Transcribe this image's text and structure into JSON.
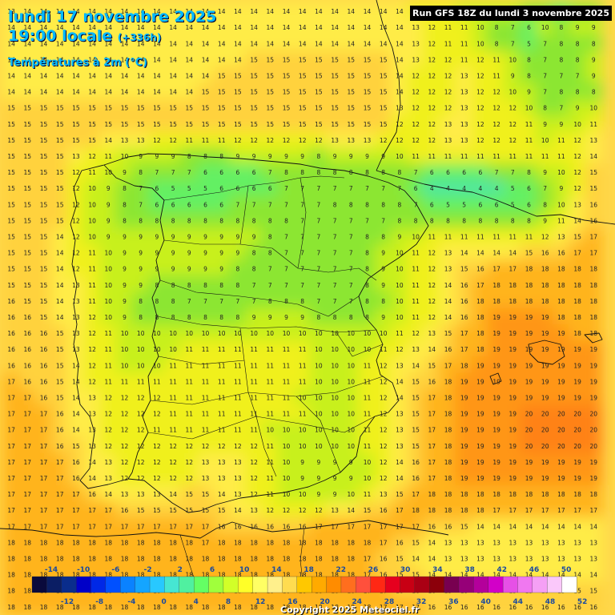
{
  "header": {
    "date": "lundi 17 novembre 2025",
    "time": "19:00 locale",
    "lead": "(+336h)",
    "parameter": "Températures à 2m (°C)",
    "run": "Run GFS 18Z du lundi 3 novembre 2025"
  },
  "legend": {
    "top_labels": [
      "-14",
      "-10",
      "-6",
      "-2",
      "2",
      "6",
      "10",
      "14",
      "18",
      "22",
      "26",
      "30",
      "34",
      "38",
      "42",
      "46",
      "50"
    ],
    "bottom_labels": [
      "-12",
      "-8",
      "-4",
      "0",
      "4",
      "8",
      "12",
      "16",
      "20",
      "24",
      "28",
      "32",
      "36",
      "40",
      "44",
      "48",
      "52"
    ],
    "colors": [
      "#0a0a3c",
      "#0b1e64",
      "#0a2d8c",
      "#0000c8",
      "#0028e6",
      "#0050ff",
      "#0a82ff",
      "#14a5ff",
      "#28c8ff",
      "#46e6d2",
      "#50f0a0",
      "#64ff64",
      "#a0ff3c",
      "#d2ff28",
      "#ffff28",
      "#ffff64",
      "#fff08c",
      "#ffdc50",
      "#ffc800",
      "#ffaa00",
      "#ff8c00",
      "#ff6e1e",
      "#ff503c",
      "#ff2814",
      "#e6001e",
      "#c80014",
      "#aa0014",
      "#8c000a",
      "#780050",
      "#960078",
      "#b4009b",
      "#d200c8",
      "#e650e6",
      "#f078f0",
      "#f5a0f5",
      "#fac8fa",
      "#ffffff"
    ]
  },
  "copyright": "Copyright 2025 Meteociel.fr",
  "grid": {
    "rows": [
      "13 14 14 14 14 14 14 14 14 14 14 14 14 14 14 14 14 14 14 14 14 14 14 14 14 12 11 11 10 10 10 9 8 7 6 7 8",
      "14 14 14 14 14 14 14 14 14 14 14 14 14 14 14 14 14 14 14 14 14 14 14 14 14 13 12 11 11 10 8 7 6 10 8 9 9",
      "14 14 14 14 14 14 14 14 14 14 14 14 14 14 14 14 14 14 14 14 14 14 14 14 14 13 12 11 11 10 8 7 5 7 8 8 8",
      "14 14 14 14 14 14 14 14 14 14 14 14 14 14 14 15 15 15 15 15 15 15 15 15 14 13 12 12 11 12 11 10 8 7 8 8 9",
      "14 14 14 14 14 14 14 14 14 14 14 14 14 15 15 15 15 15 15 15 15 15 15 15 14 12 12 12 13 12 11 9 8 7 7 7 9",
      "14 14 14 14 14 14 14 14 14 14 14 14 15 15 15 15 15 15 15 15 15 15 15 15 14 12 12 12 13 12 12 10 9 7 8 8 8",
      "15 15 15 15 15 15 15 15 15 15 15 15 15 15 15 15 15 15 15 15 15 15 15 15 13 12 12 12 13 12 12 12 10 8 7 9 10",
      "15 15 15 15 15 15 15 15 15 15 15 15 15 15 15 15 15 15 15 15 15 15 15 15 12 12 12 13 13 12 12 12 11 9 9 10 11",
      "15 15 15 15 15 15 14 13 13 12 12 11 11 11 12 12 12 12 12 12 13 13 13 12 12 12 12 13 13 12 12 12 11 10 11 12 13",
      "15 15 15 15 13 12 11 10 9 9 9 8 8 8 9 9 9 9 9 8 9 9 9 9 10 11 11 11 11 11 11 11 11 11 11 12 14",
      "15 15 15 15 12 11 10 9 8 7 7 7 6 6 6 6 7 8 8 8 8 8 8 8 8 7 6 6 6 6 7 7 8 9 10 12 15",
      "15 15 15 15 12 10 9 8 7 6 5 5 5 6 6 6 6 7 7 7 7 7 7 7 7 6 4 4 4 4 4 5 6 7 9 12 15",
      "15 15 15 15 12 10 9 8 7 6 6 6 6 6 7 7 7 7 7 7 8 8 8 8 8 7 6 5 5 6 6 5 6 8 10 13 16",
      "15 15 15 15 12 10 9 8 8 8 8 8 8 8 8 8 8 8 7 7 7 7 7 7 8 8 8 8 8 8 8 8 8 9 11 14 16",
      "15 15 15 14 12 10 9 9 9 9 9 9 9 9 9 9 8 7 7 7 7 7 8 8 9 10 11 11 11 11 11 11 11 12 13 15 17",
      "15 15 15 14 12 11 10 9 9 9 9 9 9 9 9 8 8 7 7 7 7 7 8 9 10 11 12 13 14 14 14 14 15 16 16 17 17",
      "15 15 15 14 12 11 10 9 9 9 9 9 9 9 8 8 7 7 7 7 7 7 8 9 10 11 12 13 15 16 17 17 18 18 18 18 18",
      "15 15 15 14 13 11 10 9 9 8 8 8 8 8 8 7 7 7 7 7 7 7 8 9 10 11 12 14 16 17 18 18 18 18 18 18 18",
      "16 15 15 14 13 11 10 9 8 8 8 7 7 7 7 7 8 8 8 7 7 7 8 8 10 11 12 14 16 18 18 18 18 18 18 18 18",
      "16 16 15 14 13 12 10 9 8 8 8 8 8 8 8 9 9 9 9 8 8 8 8 9 10 11 12 14 16 18 19 19 19 19 18 18 18",
      "16 16 16 15 13 12 11 10 10 10 10 10 10 10 10 10 10 10 10 10 10 10 10 10 11 12 13 15 17 18 19 19 19 19 19 18 18",
      "16 16 16 15 13 12 11 10 10 10 10 11 11 11 11 11 11 11 11 10 10 10 10 11 12 13 14 16 17 18 19 19 19 19 19 19 19",
      "16 16 16 15 14 12 11 10 10 10 11 11 11 11 11 11 11 11 11 10 10 10 11 12 13 14 15 17 18 19 19 19 19 19 19 19 19",
      "17 16 16 15 14 12 11 11 11 11 11 11 11 11 11 11 11 11 11 10 10 10 11 12 14 15 16 18 19 19 19 19 19 19 19 19 19",
      "17 17 16 15 14 13 12 12 12 12 11 11 11 11 11 11 11 11 10 10 10 10 11 12 14 15 17 18 19 19 19 19 19 19 19 19 19",
      "17 17 17 16 14 13 12 12 12 12 11 11 11 11 11 11 11 11 11 10 10 10 11 12 13 15 17 18 19 19 19 19 20 20 20 20 20",
      "17 17 17 16 14 13 12 12 12 11 11 11 11 11 11 11 10 10 10 10 10 10 11 12 13 15 17 18 19 19 19 19 20 20 20 20 20",
      "17 17 17 16 15 13 12 12 12 12 12 12 12 12 12 12 11 10 10 10 10 10 11 12 13 15 17 18 19 19 19 19 20 20 20 20 20",
      "17 17 17 17 16 14 13 12 12 12 12 12 13 13 13 12 11 10 9 9 9 9 10 12 14 16 17 18 19 19 19 19 19 19 19 19 19",
      "17 17 17 17 16 14 13 12 12 12 12 12 13 13 13 12 11 10 9 9 9 9 10 12 14 16 17 18 19 19 19 19 19 19 19 19 19",
      "17 17 17 17 17 16 14 13 13 13 14 15 15 14 13 12 11 10 10 9 9 10 11 13 15 17 18 18 18 18 18 18 18 18 18 18 18",
      "17 17 17 17 17 17 17 16 15 15 15 15 15 15 14 13 12 12 12 12 13 14 15 16 17 18 18 18 18 18 17 17 17 17 17 17 17",
      "17 17 17 17 17 17 17 17 17 17 17 17 17 16 16 16 16 16 16 17 17 17 17 17 17 17 16 16 15 14 14 14 14 14 14 14 14",
      "18 18 18 18 18 18 18 18 18 18 18 18 17 18 18 18 18 18 18 18 18 18 18 17 16 15 14 13 13 13 13 13 13 13 13 13 13",
      "18 18 18 18 18 18 18 18 18 18 18 18 18 18 18 18 18 18 18 18 18 18 17 16 15 14 14 13 13 13 13 13 13 13 13 13 13",
      "18 18 18 18 18 18 18 18 18 18 18 18 18 18 18 18 18 18 18 18 18 18 17 16 15 15 14 14 14 14 14 14 14 14 14 14 14",
      "18 18 18 18 18 18 18 18 18 18 18 18 18 18 18 18 18 18 18 18 18 18 17 17 16 16 16 15 15 15 15 15 15 15 15 15 15",
      "18 18 18 18 18 18 18 18 18 18 18 18 18 18 18 18 18 18 18 18 18 18 18 17 17 17 16 16 16 16 16 16 16 16 16 16 16"
    ]
  }
}
